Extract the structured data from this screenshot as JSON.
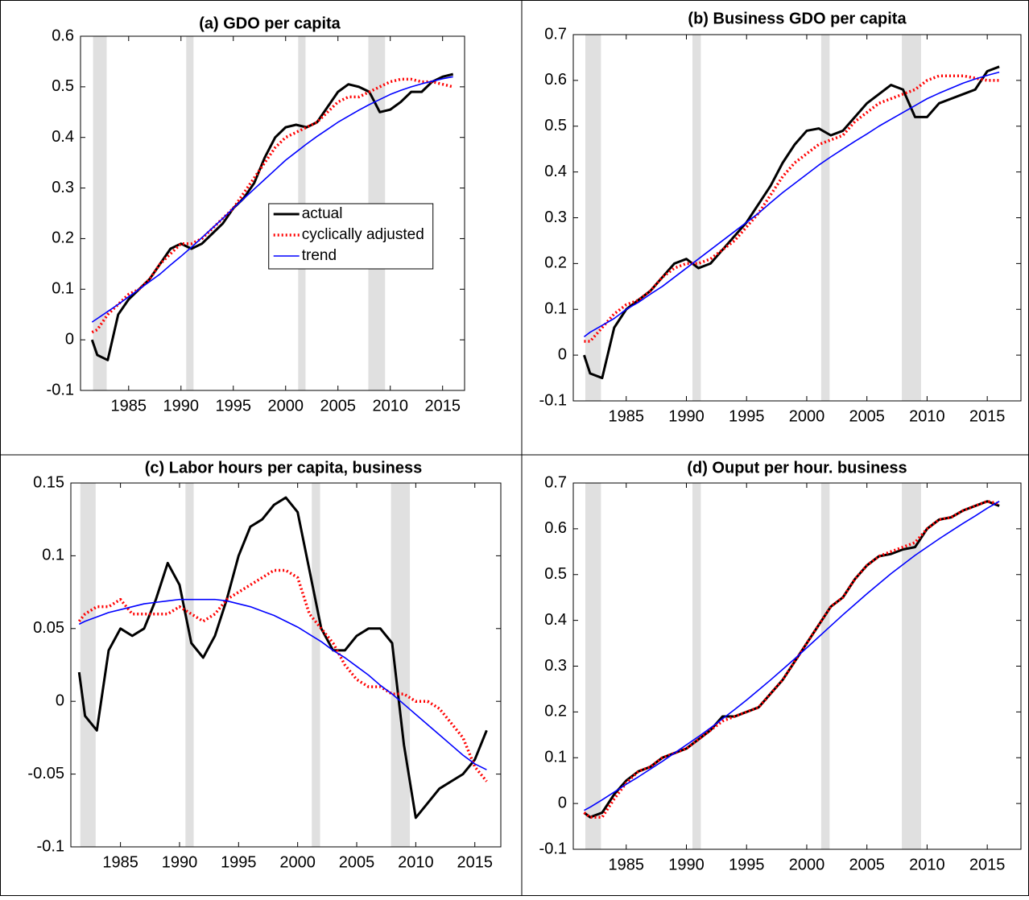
{
  "recessions": [
    [
      1981.6,
      1982.9
    ],
    [
      1990.5,
      1991.2
    ],
    [
      2001.2,
      2001.9
    ],
    [
      2007.9,
      2009.5
    ]
  ],
  "chart_data": [
    {
      "type": "line",
      "title": "(a) GDO per capita",
      "x": [
        1981.5,
        1982,
        1983,
        1984,
        1985,
        1986,
        1987,
        1988,
        1989,
        1990,
        1991,
        1992,
        1993,
        1994,
        1995,
        1996,
        1997,
        1998,
        1999,
        2000,
        2001,
        2002,
        2003,
        2004,
        2005,
        2006,
        2007,
        2008,
        2009,
        2010,
        2011,
        2012,
        2013,
        2014,
        2015,
        2016
      ],
      "xlim": [
        1980.4,
        2017.1
      ],
      "xticks": [
        1985,
        1990,
        1995,
        2000,
        2005,
        2010,
        2015
      ],
      "ylim": [
        -0.1,
        0.6
      ],
      "yticks": [
        -0.1,
        0,
        0.1,
        0.2,
        0.3,
        0.4,
        0.5,
        0.6
      ],
      "legend": "center-right",
      "series": [
        {
          "name": "actual",
          "color": "#000000",
          "line_style": "solid",
          "values": [
            0,
            -0.03,
            -0.04,
            0.05,
            0.08,
            0.1,
            0.12,
            0.15,
            0.18,
            0.19,
            0.18,
            0.19,
            0.21,
            0.23,
            0.26,
            0.28,
            0.31,
            0.36,
            0.4,
            0.42,
            0.425,
            0.42,
            0.43,
            0.46,
            0.49,
            0.505,
            0.5,
            0.49,
            0.45,
            0.455,
            0.47,
            0.49,
            0.49,
            0.51,
            0.52,
            0.525
          ]
        },
        {
          "name": "cyclically adjusted",
          "color": "#ff0000",
          "line_style": "dotted",
          "values": [
            0.015,
            0.02,
            0.05,
            0.07,
            0.09,
            0.1,
            0.12,
            0.15,
            0.17,
            0.19,
            0.19,
            0.2,
            0.22,
            0.24,
            0.26,
            0.29,
            0.32,
            0.35,
            0.38,
            0.4,
            0.41,
            0.42,
            0.43,
            0.45,
            0.47,
            0.48,
            0.48,
            0.49,
            0.5,
            0.51,
            0.515,
            0.515,
            0.51,
            0.51,
            0.505,
            0.5
          ]
        },
        {
          "name": "trend",
          "color": "#0000ff",
          "line_style": "thin",
          "values": [
            0.035,
            0.042,
            0.056,
            0.07,
            0.085,
            0.1,
            0.115,
            0.13,
            0.148,
            0.165,
            0.183,
            0.202,
            0.221,
            0.24,
            0.26,
            0.279,
            0.298,
            0.317,
            0.336,
            0.355,
            0.371,
            0.387,
            0.402,
            0.416,
            0.43,
            0.442,
            0.454,
            0.465,
            0.475,
            0.485,
            0.493,
            0.5,
            0.506,
            0.511,
            0.516,
            0.52
          ]
        }
      ]
    },
    {
      "type": "line",
      "title": "(b) Business GDO per capita",
      "x": [
        1981.5,
        1982,
        1983,
        1984,
        1985,
        1986,
        1987,
        1988,
        1989,
        1990,
        1991,
        1992,
        1993,
        1994,
        1995,
        1996,
        1997,
        1998,
        1999,
        2000,
        2001,
        2002,
        2003,
        2004,
        2005,
        2006,
        2007,
        2008,
        2009,
        2010,
        2011,
        2012,
        2013,
        2014,
        2015,
        2016
      ],
      "xlim": [
        1980.6,
        2017.8
      ],
      "xticks": [
        1985,
        1990,
        1995,
        2000,
        2005,
        2010,
        2015
      ],
      "ylim": [
        -0.1,
        0.7
      ],
      "yticks": [
        -0.1,
        0,
        0.1,
        0.2,
        0.3,
        0.4,
        0.5,
        0.6,
        0.7
      ],
      "series": [
        {
          "name": "actual",
          "color": "#000000",
          "line_style": "solid",
          "values": [
            0,
            -0.04,
            -0.05,
            0.06,
            0.1,
            0.12,
            0.14,
            0.17,
            0.2,
            0.21,
            0.19,
            0.2,
            0.23,
            0.26,
            0.29,
            0.33,
            0.37,
            0.42,
            0.46,
            0.49,
            0.495,
            0.48,
            0.49,
            0.52,
            0.55,
            0.57,
            0.59,
            0.58,
            0.52,
            0.52,
            0.55,
            0.56,
            0.57,
            0.58,
            0.62,
            0.63
          ]
        },
        {
          "name": "cyclically adjusted",
          "color": "#ff0000",
          "line_style": "dotted",
          "values": [
            0.03,
            0.03,
            0.06,
            0.09,
            0.11,
            0.12,
            0.14,
            0.17,
            0.19,
            0.2,
            0.2,
            0.21,
            0.23,
            0.25,
            0.28,
            0.31,
            0.35,
            0.39,
            0.42,
            0.44,
            0.46,
            0.47,
            0.48,
            0.51,
            0.53,
            0.55,
            0.56,
            0.57,
            0.58,
            0.6,
            0.61,
            0.61,
            0.61,
            0.605,
            0.6,
            0.6
          ]
        },
        {
          "name": "trend",
          "color": "#0000ff",
          "line_style": "thin",
          "values": [
            0.04,
            0.05,
            0.065,
            0.08,
            0.1,
            0.115,
            0.133,
            0.15,
            0.17,
            0.19,
            0.21,
            0.23,
            0.25,
            0.27,
            0.29,
            0.31,
            0.333,
            0.355,
            0.375,
            0.395,
            0.415,
            0.433,
            0.45,
            0.467,
            0.483,
            0.5,
            0.515,
            0.53,
            0.545,
            0.56,
            0.572,
            0.583,
            0.594,
            0.603,
            0.611,
            0.618
          ]
        }
      ]
    },
    {
      "type": "line",
      "title": "(c) Labor hours per capita, business",
      "x": [
        1981.5,
        1982,
        1983,
        1984,
        1985,
        1986,
        1987,
        1988,
        1989,
        1990,
        1991,
        1992,
        1993,
        1994,
        1995,
        1996,
        1997,
        1998,
        1999,
        2000,
        2001,
        2002,
        2003,
        2004,
        2005,
        2006,
        2007,
        2008,
        2009,
        2010,
        2011,
        2012,
        2013,
        2014,
        2015,
        2016
      ],
      "xlim": [
        1980.8,
        2017.2
      ],
      "xticks": [
        1985,
        1990,
        1995,
        2000,
        2005,
        2010,
        2015
      ],
      "ylim": [
        -0.1,
        0.15
      ],
      "yticks": [
        -0.1,
        -0.05,
        0,
        0.05,
        0.1,
        0.15
      ],
      "series": [
        {
          "name": "actual",
          "color": "#000000",
          "line_style": "solid",
          "values": [
            0.02,
            -0.01,
            -0.02,
            0.035,
            0.05,
            0.045,
            0.05,
            0.07,
            0.095,
            0.08,
            0.04,
            0.03,
            0.045,
            0.07,
            0.1,
            0.12,
            0.125,
            0.135,
            0.14,
            0.13,
            0.09,
            0.05,
            0.035,
            0.035,
            0.045,
            0.05,
            0.05,
            0.04,
            -0.03,
            -0.08,
            -0.07,
            -0.06,
            -0.055,
            -0.05,
            -0.04,
            -0.02
          ]
        },
        {
          "name": "cyclically adjusted",
          "color": "#ff0000",
          "line_style": "dotted",
          "values": [
            0.055,
            0.06,
            0.065,
            0.065,
            0.07,
            0.06,
            0.06,
            0.06,
            0.06,
            0.065,
            0.06,
            0.055,
            0.06,
            0.07,
            0.075,
            0.08,
            0.085,
            0.09,
            0.09,
            0.085,
            0.06,
            0.05,
            0.04,
            0.025,
            0.015,
            0.01,
            0.01,
            0.005,
            0.005,
            0,
            0,
            -0.005,
            -0.015,
            -0.025,
            -0.045,
            -0.055
          ]
        },
        {
          "name": "trend",
          "color": "#0000ff",
          "line_style": "thin",
          "values": [
            0.053,
            0.055,
            0.058,
            0.061,
            0.063,
            0.065,
            0.067,
            0.068,
            0.069,
            0.07,
            0.07,
            0.07,
            0.07,
            0.069,
            0.067,
            0.065,
            0.062,
            0.059,
            0.055,
            0.051,
            0.046,
            0.041,
            0.035,
            0.03,
            0.024,
            0.018,
            0.011,
            0.005,
            -0.002,
            -0.009,
            -0.016,
            -0.023,
            -0.03,
            -0.037,
            -0.043,
            -0.047
          ]
        }
      ]
    },
    {
      "type": "line",
      "title": "(d) Ouput per hour. business",
      "x": [
        1981.5,
        1982,
        1983,
        1984,
        1985,
        1986,
        1987,
        1988,
        1989,
        1990,
        1991,
        1992,
        1993,
        1994,
        1995,
        1996,
        1997,
        1998,
        1999,
        2000,
        2001,
        2002,
        2003,
        2004,
        2005,
        2006,
        2007,
        2008,
        2009,
        2010,
        2011,
        2012,
        2013,
        2014,
        2015,
        2016
      ],
      "xlim": [
        1980.6,
        2017.8
      ],
      "xticks": [
        1985,
        1990,
        1995,
        2000,
        2005,
        2010,
        2015
      ],
      "ylim": [
        -0.1,
        0.7
      ],
      "yticks": [
        -0.1,
        0,
        0.1,
        0.2,
        0.3,
        0.4,
        0.5,
        0.6,
        0.7
      ],
      "series": [
        {
          "name": "actual",
          "color": "#000000",
          "line_style": "solid",
          "values": [
            -0.02,
            -0.03,
            -0.02,
            0.02,
            0.05,
            0.07,
            0.08,
            0.1,
            0.11,
            0.12,
            0.14,
            0.16,
            0.19,
            0.19,
            0.2,
            0.21,
            0.24,
            0.27,
            0.31,
            0.35,
            0.39,
            0.43,
            0.45,
            0.49,
            0.52,
            0.54,
            0.545,
            0.555,
            0.56,
            0.6,
            0.62,
            0.625,
            0.64,
            0.65,
            0.66,
            0.65
          ]
        },
        {
          "name": "cyclically adjusted",
          "color": "#ff0000",
          "line_style": "dotted",
          "values": [
            -0.02,
            -0.03,
            -0.03,
            0.01,
            0.045,
            0.07,
            0.08,
            0.1,
            0.11,
            0.12,
            0.14,
            0.16,
            0.18,
            0.19,
            0.2,
            0.21,
            0.24,
            0.27,
            0.31,
            0.35,
            0.39,
            0.43,
            0.45,
            0.49,
            0.52,
            0.54,
            0.55,
            0.56,
            0.57,
            0.6,
            0.62,
            0.625,
            0.64,
            0.65,
            0.66,
            0.655
          ]
        },
        {
          "name": "trend",
          "color": "#0000ff",
          "line_style": "thin",
          "values": [
            -0.015,
            -0.008,
            0.008,
            0.025,
            0.042,
            0.058,
            0.075,
            0.092,
            0.11,
            0.128,
            0.146,
            0.165,
            0.185,
            0.205,
            0.226,
            0.248,
            0.27,
            0.293,
            0.316,
            0.34,
            0.364,
            0.388,
            0.412,
            0.435,
            0.458,
            0.48,
            0.502,
            0.522,
            0.542,
            0.56,
            0.578,
            0.595,
            0.612,
            0.628,
            0.645,
            0.66
          ]
        }
      ]
    }
  ]
}
